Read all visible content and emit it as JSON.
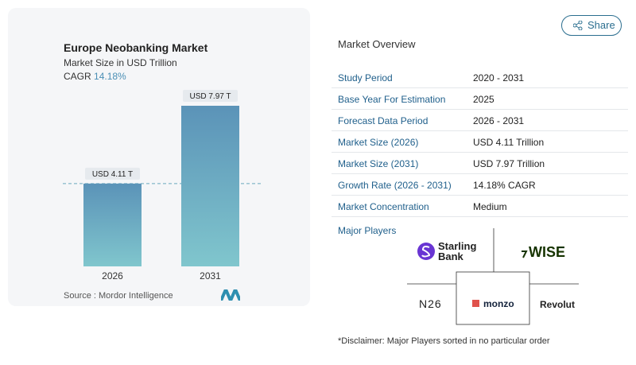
{
  "chart_data": {
    "type": "bar",
    "title": "Europe Neobanking Market",
    "subtitle": "Market Size in USD Trillion",
    "cagr_label": "CAGR",
    "cagr_value": "14.18%",
    "categories": [
      "2026",
      "2031"
    ],
    "values": [
      4.11,
      7.97
    ],
    "value_labels": [
      "USD 4.11 T",
      "USD 7.97 T"
    ],
    "colors": [
      "#5b93b8",
      "#80c6cd"
    ],
    "source": "Source :  Mordor Intelligence"
  },
  "share": "Share",
  "overview": {
    "title": "Market Overview",
    "rows": [
      [
        "Study Period",
        "2020 - 2031"
      ],
      [
        "Base Year For Estimation",
        "2025"
      ],
      [
        "Forecast Data Period",
        "2026 - 2031"
      ],
      [
        "Market Size (2026)",
        "USD 4.11 Trillion"
      ],
      [
        "Market Size (2031)",
        "USD 7.97 Trillion"
      ],
      [
        "Growth Rate (2026 - 2031)",
        "14.18% CAGR"
      ],
      [
        "Market Concentration",
        "Medium"
      ]
    ]
  },
  "players": {
    "title": "Major Players",
    "names": [
      "Starling Bank",
      "WISE",
      "N26",
      "monzo",
      "Revolut"
    ]
  },
  "disclaimer": "*Disclaimer: Major Players sorted in no particular order"
}
